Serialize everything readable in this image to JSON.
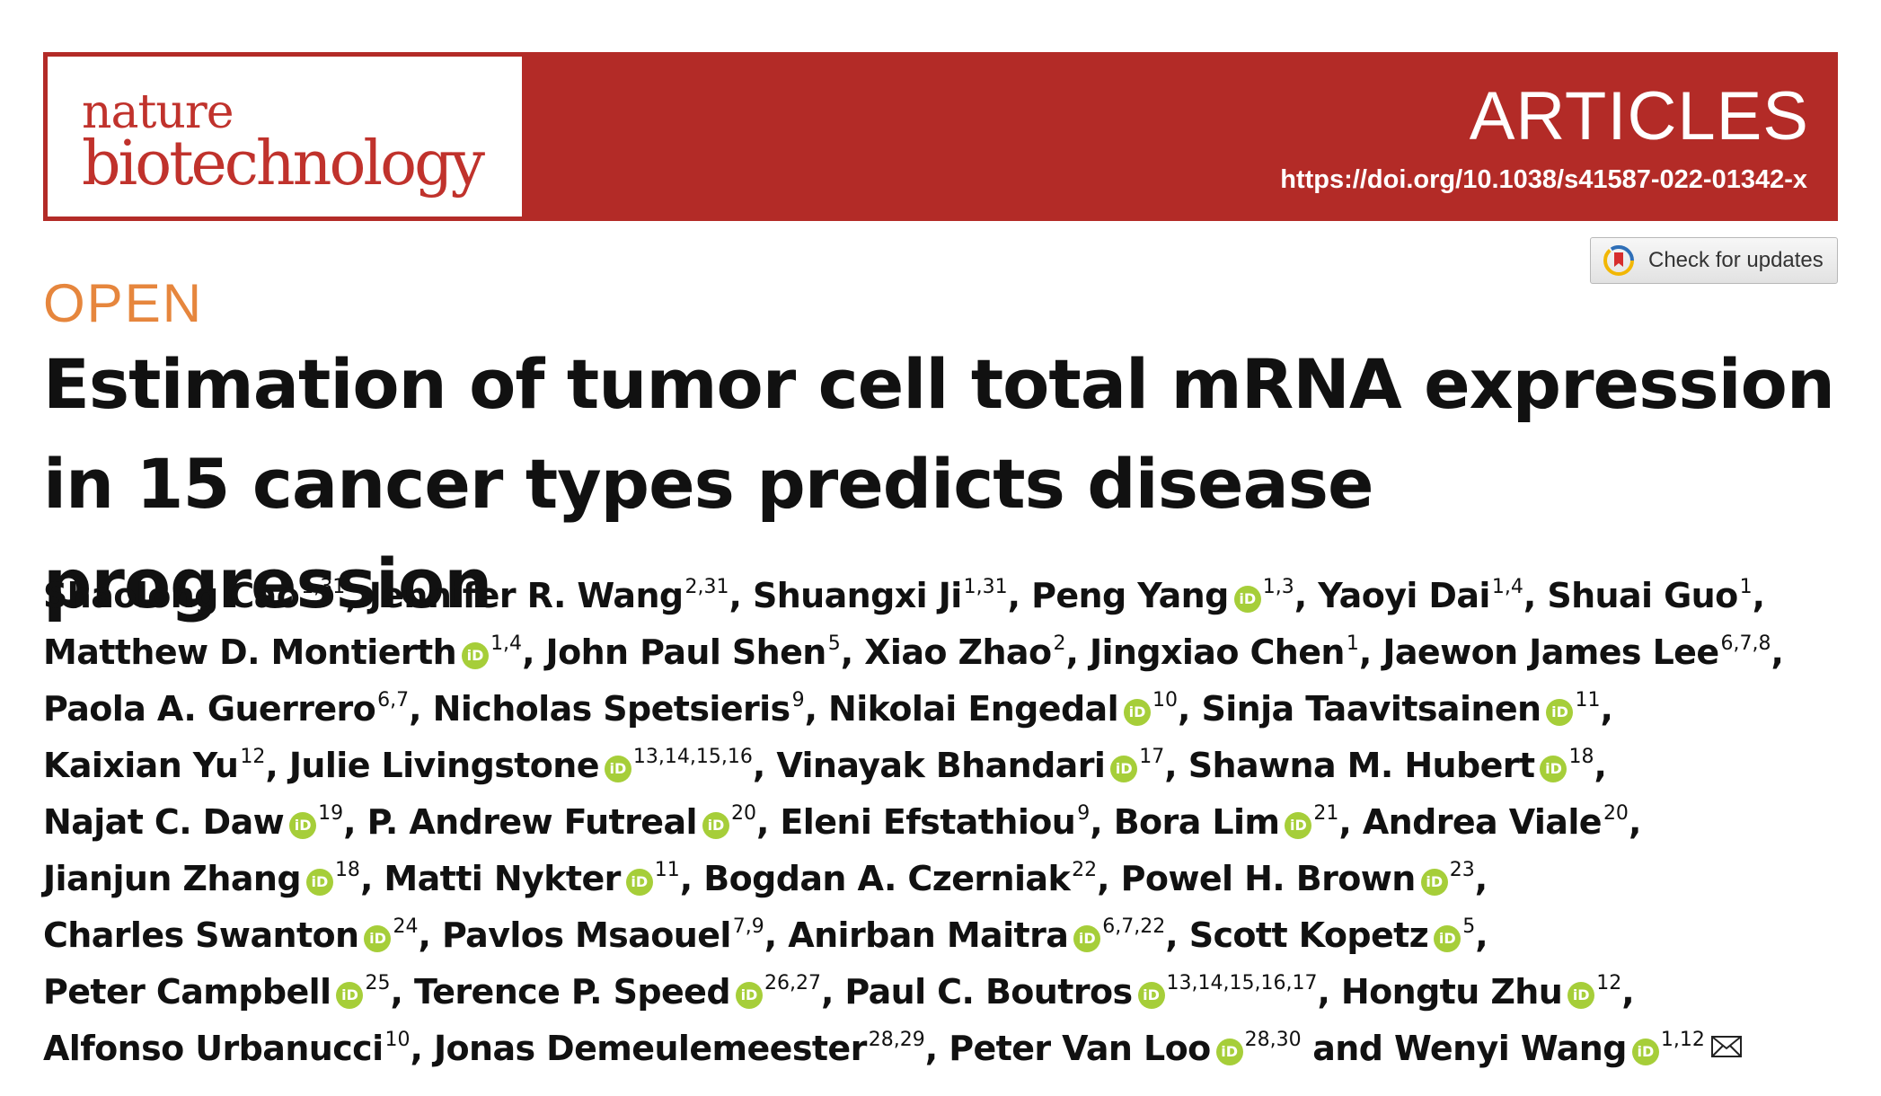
{
  "header": {
    "journal_name_line1": "nature",
    "journal_name_line2": "biotechnology",
    "section_label": "ARTICLES",
    "doi": "https://doi.org/10.1038/s41587-022-01342-x",
    "brand_color": "#b32b27"
  },
  "check_updates": {
    "label": "Check for updates"
  },
  "open_access_label": "OPEN",
  "title": "Estimation of tumor cell total mRNA expression in 15 cancer types predicts disease progression",
  "authors": [
    {
      "name": "Shaolong Cao",
      "orcid": false,
      "affil": "1,31",
      "sep": ", "
    },
    {
      "name": "Jennifer R. Wang",
      "orcid": false,
      "affil": "2,31",
      "sep": ", "
    },
    {
      "name": "Shuangxi Ji",
      "orcid": false,
      "affil": "1,31",
      "sep": ", "
    },
    {
      "name": "Peng Yang",
      "orcid": true,
      "affil": "1,3",
      "sep": ", "
    },
    {
      "name": "Yaoyi Dai",
      "orcid": false,
      "affil": "1,4",
      "sep": ", "
    },
    {
      "name": "Shuai Guo",
      "orcid": false,
      "affil": "1",
      "sep": ", "
    },
    {
      "name": "Matthew D. Montierth",
      "orcid": true,
      "affil": "1,4",
      "sep": ", "
    },
    {
      "name": "John Paul Shen",
      "orcid": false,
      "affil": "5",
      "sep": ", "
    },
    {
      "name": "Xiao Zhao",
      "orcid": false,
      "affil": "2",
      "sep": ", "
    },
    {
      "name": "Jingxiao Chen",
      "orcid": false,
      "affil": "1",
      "sep": ", "
    },
    {
      "name": "Jaewon James Lee",
      "orcid": false,
      "affil": "6,7,8",
      "sep": ", "
    },
    {
      "name": "Paola A. Guerrero",
      "orcid": false,
      "affil": "6,7",
      "sep": ", "
    },
    {
      "name": "Nicholas Spetsieris",
      "orcid": false,
      "affil": "9",
      "sep": ", "
    },
    {
      "name": "Nikolai Engedal",
      "orcid": true,
      "affil": "10",
      "sep": ", "
    },
    {
      "name": "Sinja Taavitsainen",
      "orcid": true,
      "affil": "11",
      "sep": ", "
    },
    {
      "name": "Kaixian Yu",
      "orcid": false,
      "affil": "12",
      "sep": ", "
    },
    {
      "name": "Julie Livingstone",
      "orcid": true,
      "affil": "13,14,15,16",
      "sep": ", "
    },
    {
      "name": "Vinayak Bhandari",
      "orcid": true,
      "affil": "17",
      "sep": ", "
    },
    {
      "name": "Shawna M. Hubert",
      "orcid": true,
      "affil": "18",
      "sep": ", "
    },
    {
      "name": "Najat C. Daw",
      "orcid": true,
      "affil": "19",
      "sep": ", "
    },
    {
      "name": "P. Andrew Futreal",
      "orcid": true,
      "affil": "20",
      "sep": ", "
    },
    {
      "name": "Eleni Efstathiou",
      "orcid": false,
      "affil": "9",
      "sep": ", "
    },
    {
      "name": "Bora Lim",
      "orcid": true,
      "affil": "21",
      "sep": ", "
    },
    {
      "name": "Andrea Viale",
      "orcid": false,
      "affil": "20",
      "sep": ", "
    },
    {
      "name": "Jianjun Zhang",
      "orcid": true,
      "affil": "18",
      "sep": ", "
    },
    {
      "name": "Matti Nykter",
      "orcid": true,
      "affil": "11",
      "sep": ", "
    },
    {
      "name": "Bogdan A. Czerniak",
      "orcid": false,
      "affil": "22",
      "sep": ", "
    },
    {
      "name": "Powel H. Brown",
      "orcid": true,
      "affil": "23",
      "sep": ", "
    },
    {
      "name": "Charles Swanton",
      "orcid": true,
      "affil": "24",
      "sep": ", "
    },
    {
      "name": "Pavlos Msaouel",
      "orcid": false,
      "affil": "7,9",
      "sep": ", "
    },
    {
      "name": "Anirban Maitra",
      "orcid": true,
      "affil": "6,7,22",
      "sep": ", "
    },
    {
      "name": "Scott Kopetz",
      "orcid": true,
      "affil": "5",
      "sep": ", "
    },
    {
      "name": "Peter Campbell",
      "orcid": true,
      "affil": "25",
      "sep": ", "
    },
    {
      "name": "Terence P. Speed",
      "orcid": true,
      "affil": "26,27",
      "sep": ", "
    },
    {
      "name": "Paul C. Boutros",
      "orcid": true,
      "affil": "13,14,15,16,17",
      "sep": ", "
    },
    {
      "name": "Hongtu Zhu",
      "orcid": true,
      "affil": "12",
      "sep": ", "
    },
    {
      "name": "Alfonso Urbanucci",
      "orcid": false,
      "affil": "10",
      "sep": ", "
    },
    {
      "name": "Jonas Demeulemeester",
      "orcid": false,
      "affil": "28,29",
      "sep": ", "
    },
    {
      "name": "Peter Van Loo",
      "orcid": true,
      "affil": "28,30",
      "sep": " and "
    },
    {
      "name": "Wenyi Wang",
      "orcid": true,
      "affil": "1,12",
      "sep": "",
      "corresponding": true
    }
  ],
  "icons": {
    "orcid": "orcid-icon",
    "mail": "mail-icon",
    "bookmark": "check-updates-icon"
  },
  "colors": {
    "open": "#e6863d",
    "orcid": "#a6ce39"
  }
}
